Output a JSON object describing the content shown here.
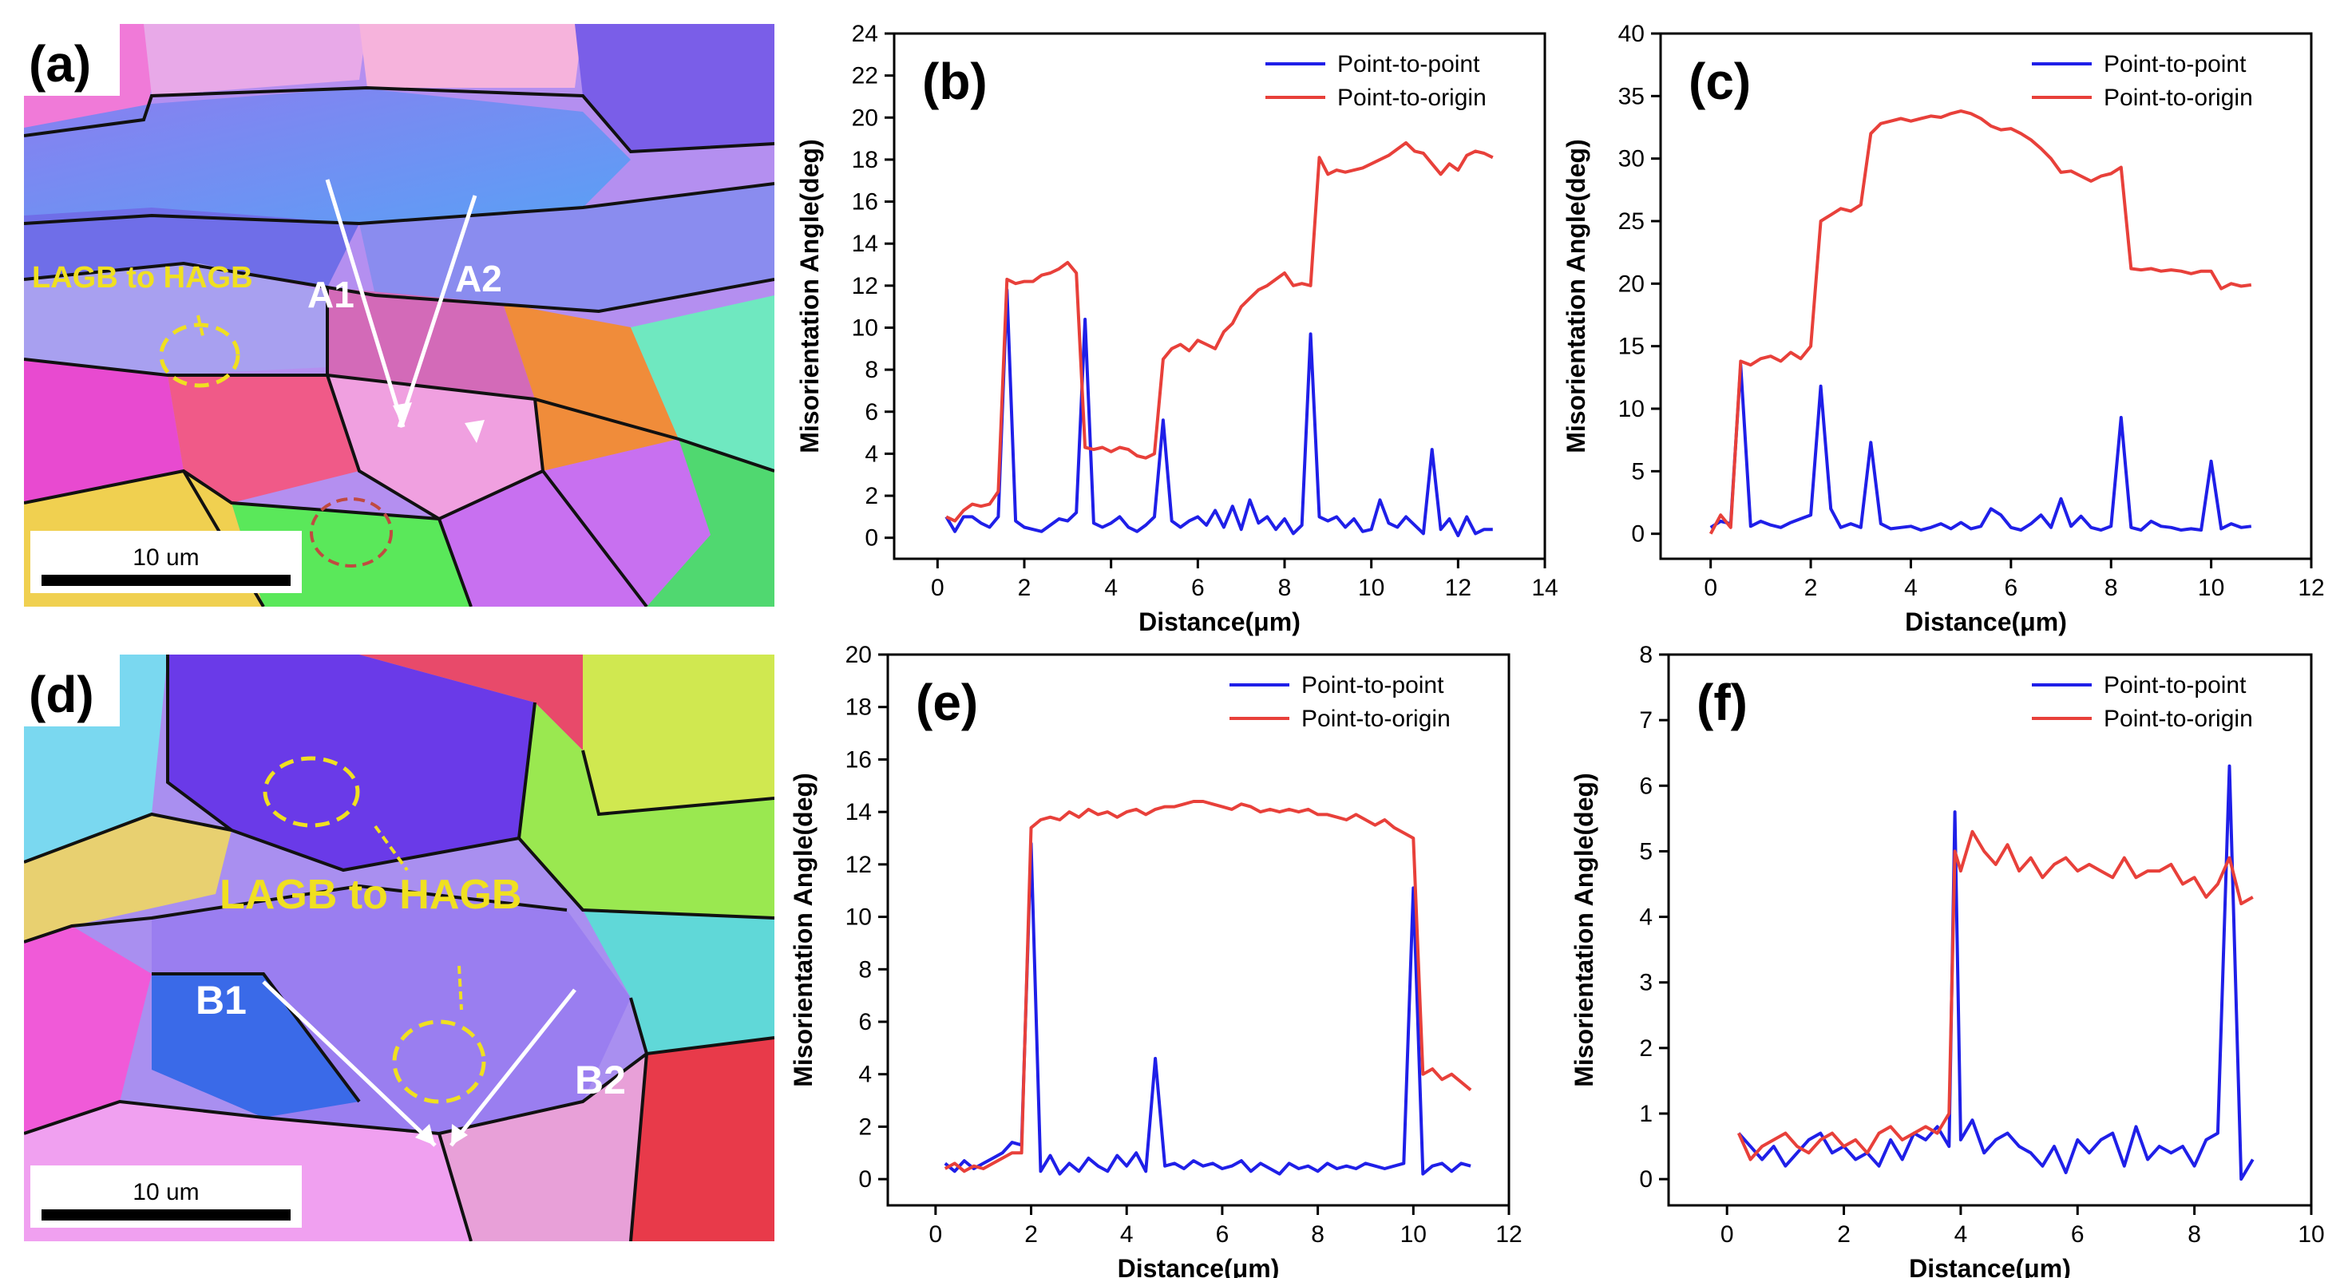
{
  "ebsd_maps": [
    {
      "panel_label": "(a)",
      "scale_bar": "10 um",
      "annotation": "LAGB to HAGB",
      "line_labels": [
        "A1",
        "A2"
      ]
    },
    {
      "panel_label": "(d)",
      "scale_bar": "10 um",
      "annotation": "LAGB to HAGB",
      "line_labels": [
        "B1",
        "B2"
      ]
    }
  ],
  "colors": {
    "point_to_point": "#1f1fe8",
    "point_to_origin": "#e8403a",
    "annotation": "#f0e020",
    "arrow": "#ffffff"
  },
  "chart_data": [
    {
      "type": "line",
      "panel_label": "(b)",
      "xlabel": "Distance(μm)",
      "ylabel": "Misorientation Angle(deg)",
      "xlim": [
        -1,
        14
      ],
      "ylim": [
        -1,
        24
      ],
      "xticks": [
        0,
        2,
        4,
        6,
        8,
        10,
        12,
        14
      ],
      "yticks": [
        0,
        2,
        4,
        6,
        8,
        10,
        12,
        14,
        16,
        18,
        20,
        22,
        24
      ],
      "legend": [
        "Point-to-point",
        "Point-to-origin"
      ],
      "legend_position": "top-right",
      "series": [
        {
          "name": "Point-to-point",
          "color": "#1f1fe8",
          "x": [
            0.2,
            0.4,
            0.6,
            0.8,
            1.0,
            1.2,
            1.4,
            1.6,
            1.8,
            2.0,
            2.2,
            2.4,
            2.6,
            2.8,
            3.0,
            3.2,
            3.4,
            3.6,
            3.8,
            4.0,
            4.2,
            4.4,
            4.6,
            4.8,
            5.0,
            5.2,
            5.4,
            5.6,
            5.8,
            6.0,
            6.2,
            6.4,
            6.6,
            6.8,
            7.0,
            7.2,
            7.4,
            7.6,
            7.8,
            8.0,
            8.2,
            8.4,
            8.6,
            8.8,
            9.0,
            9.2,
            9.4,
            9.6,
            9.8,
            10.0,
            10.2,
            10.4,
            10.6,
            10.8,
            11.0,
            11.2,
            11.4,
            11.6,
            11.8,
            12.0,
            12.2,
            12.4,
            12.6,
            12.8
          ],
          "y": [
            1.0,
            0.3,
            1.0,
            1.0,
            0.7,
            0.5,
            1.0,
            11.8,
            0.8,
            0.5,
            0.4,
            0.3,
            0.6,
            0.9,
            0.8,
            1.2,
            10.4,
            0.7,
            0.5,
            0.7,
            1.0,
            0.5,
            0.3,
            0.6,
            1.0,
            5.6,
            0.8,
            0.5,
            0.8,
            1.0,
            0.6,
            1.3,
            0.5,
            1.5,
            0.4,
            1.8,
            0.7,
            1.0,
            0.4,
            0.9,
            0.2,
            0.6,
            9.7,
            1.0,
            0.8,
            1.0,
            0.5,
            0.9,
            0.3,
            0.4,
            1.8,
            0.7,
            0.5,
            1.0,
            0.6,
            0.2,
            4.2,
            0.4,
            0.9,
            0.1,
            1.0,
            0.2,
            0.4,
            0.4
          ]
        },
        {
          "name": "Point-to-origin",
          "color": "#e8403a",
          "x": [
            0.2,
            0.4,
            0.6,
            0.8,
            1.0,
            1.2,
            1.4,
            1.6,
            1.8,
            2.0,
            2.2,
            2.4,
            2.6,
            2.8,
            3.0,
            3.2,
            3.4,
            3.6,
            3.8,
            4.0,
            4.2,
            4.4,
            4.6,
            4.8,
            5.0,
            5.2,
            5.4,
            5.6,
            5.8,
            6.0,
            6.2,
            6.4,
            6.6,
            6.8,
            7.0,
            7.2,
            7.4,
            7.6,
            7.8,
            8.0,
            8.2,
            8.4,
            8.6,
            8.8,
            9.0,
            9.2,
            9.4,
            9.6,
            9.8,
            10.0,
            10.2,
            10.4,
            10.6,
            10.8,
            11.0,
            11.2,
            11.4,
            11.6,
            11.8,
            12.0,
            12.2,
            12.4,
            12.6,
            12.8
          ],
          "y": [
            1.0,
            0.8,
            1.3,
            1.6,
            1.5,
            1.6,
            2.2,
            12.3,
            12.1,
            12.2,
            12.2,
            12.5,
            12.6,
            12.8,
            13.1,
            12.6,
            4.3,
            4.2,
            4.3,
            4.1,
            4.3,
            4.2,
            3.9,
            3.8,
            4.0,
            8.5,
            9.0,
            9.2,
            8.9,
            9.4,
            9.2,
            9.0,
            9.8,
            10.2,
            11.0,
            11.4,
            11.8,
            12.0,
            12.3,
            12.6,
            12.0,
            12.1,
            12.0,
            18.1,
            17.3,
            17.5,
            17.4,
            17.5,
            17.6,
            17.8,
            18.0,
            18.2,
            18.5,
            18.8,
            18.4,
            18.3,
            17.8,
            17.3,
            17.8,
            17.5,
            18.2,
            18.4,
            18.3,
            18.1
          ]
        }
      ]
    },
    {
      "type": "line",
      "panel_label": "(c)",
      "xlabel": "Distance(μm)",
      "ylabel": "Misorientation Angle(deg)",
      "xlim": [
        -1,
        12
      ],
      "ylim": [
        -2,
        40
      ],
      "xticks": [
        0,
        2,
        4,
        6,
        8,
        10,
        12
      ],
      "yticks": [
        0,
        5,
        10,
        15,
        20,
        25,
        30,
        35,
        40
      ],
      "legend": [
        "Point-to-point",
        "Point-to-origin"
      ],
      "legend_position": "top-right",
      "series": [
        {
          "name": "Point-to-point",
          "color": "#1f1fe8",
          "x": [
            0.0,
            0.2,
            0.4,
            0.6,
            0.8,
            1.0,
            1.2,
            1.4,
            1.6,
            1.8,
            2.0,
            2.2,
            2.4,
            2.6,
            2.8,
            3.0,
            3.2,
            3.4,
            3.6,
            3.8,
            4.0,
            4.2,
            4.4,
            4.6,
            4.8,
            5.0,
            5.2,
            5.4,
            5.6,
            5.8,
            6.0,
            6.2,
            6.4,
            6.6,
            6.8,
            7.0,
            7.2,
            7.4,
            7.6,
            7.8,
            8.0,
            8.2,
            8.4,
            8.6,
            8.8,
            9.0,
            9.2,
            9.4,
            9.6,
            9.8,
            10.0,
            10.2,
            10.4,
            10.6,
            10.8
          ],
          "y": [
            0.5,
            1.0,
            0.8,
            13.5,
            0.6,
            1.0,
            0.7,
            0.5,
            0.9,
            1.2,
            1.5,
            11.8,
            2.0,
            0.5,
            0.8,
            0.5,
            7.3,
            0.8,
            0.4,
            0.5,
            0.6,
            0.3,
            0.5,
            0.8,
            0.4,
            0.9,
            0.4,
            0.6,
            2.0,
            1.5,
            0.5,
            0.3,
            0.8,
            1.5,
            0.5,
            2.8,
            0.6,
            1.4,
            0.5,
            0.3,
            0.6,
            9.3,
            0.5,
            0.3,
            1.0,
            0.6,
            0.5,
            0.3,
            0.4,
            0.3,
            5.8,
            0.4,
            0.8,
            0.5,
            0.6
          ]
        },
        {
          "name": "Point-to-origin",
          "color": "#e8403a",
          "x": [
            0.0,
            0.2,
            0.4,
            0.6,
            0.8,
            1.0,
            1.2,
            1.4,
            1.6,
            1.8,
            2.0,
            2.2,
            2.4,
            2.6,
            2.8,
            3.0,
            3.2,
            3.4,
            3.6,
            3.8,
            4.0,
            4.2,
            4.4,
            4.6,
            4.8,
            5.0,
            5.2,
            5.4,
            5.6,
            5.8,
            6.0,
            6.2,
            6.4,
            6.6,
            6.8,
            7.0,
            7.2,
            7.4,
            7.6,
            7.8,
            8.0,
            8.2,
            8.4,
            8.6,
            8.8,
            9.0,
            9.2,
            9.4,
            9.6,
            9.8,
            10.0,
            10.2,
            10.4,
            10.6,
            10.8
          ],
          "y": [
            0.0,
            1.5,
            0.5,
            13.8,
            13.5,
            14.0,
            14.2,
            13.8,
            14.5,
            14.0,
            15.0,
            25.0,
            25.5,
            26.0,
            25.8,
            26.3,
            32.0,
            32.8,
            33.0,
            33.2,
            33.0,
            33.2,
            33.4,
            33.3,
            33.6,
            33.8,
            33.6,
            33.2,
            32.6,
            32.3,
            32.4,
            32.0,
            31.5,
            30.8,
            30.0,
            28.9,
            29.0,
            28.6,
            28.2,
            28.6,
            28.8,
            29.3,
            21.2,
            21.1,
            21.2,
            21.0,
            21.1,
            21.0,
            20.8,
            21.0,
            21.0,
            19.6,
            20.0,
            19.8,
            19.9
          ]
        }
      ]
    },
    {
      "type": "line",
      "panel_label": "(e)",
      "xlabel": "Distance(μm)",
      "ylabel": "Misorientation Angle(deg)",
      "xlim": [
        -1,
        12
      ],
      "ylim": [
        -1,
        20
      ],
      "xticks": [
        0,
        2,
        4,
        6,
        8,
        10,
        12
      ],
      "yticks": [
        0,
        2,
        4,
        6,
        8,
        10,
        12,
        14,
        16,
        18,
        20
      ],
      "legend": [
        "Point-to-point",
        "Point-to-origin"
      ],
      "legend_position": "top-right",
      "series": [
        {
          "name": "Point-to-point",
          "color": "#1f1fe8",
          "x": [
            0.2,
            0.4,
            0.6,
            0.8,
            1.0,
            1.2,
            1.4,
            1.6,
            1.8,
            2.0,
            2.2,
            2.4,
            2.6,
            2.8,
            3.0,
            3.2,
            3.4,
            3.6,
            3.8,
            4.0,
            4.2,
            4.4,
            4.6,
            4.8,
            5.0,
            5.2,
            5.4,
            5.6,
            5.8,
            6.0,
            6.2,
            6.4,
            6.6,
            6.8,
            7.0,
            7.2,
            7.4,
            7.6,
            7.8,
            8.0,
            8.2,
            8.4,
            8.6,
            8.8,
            9.0,
            9.2,
            9.4,
            9.6,
            9.8,
            10.0,
            10.2,
            10.4,
            10.6,
            10.8,
            11.0,
            11.2
          ],
          "y": [
            0.6,
            0.3,
            0.7,
            0.4,
            0.6,
            0.8,
            1.0,
            1.4,
            1.3,
            12.8,
            0.3,
            0.9,
            0.2,
            0.6,
            0.3,
            0.8,
            0.5,
            0.3,
            0.9,
            0.5,
            1.0,
            0.3,
            4.6,
            0.5,
            0.6,
            0.4,
            0.7,
            0.5,
            0.6,
            0.4,
            0.5,
            0.7,
            0.3,
            0.6,
            0.4,
            0.2,
            0.6,
            0.4,
            0.5,
            0.3,
            0.6,
            0.4,
            0.5,
            0.4,
            0.6,
            0.5,
            0.4,
            0.5,
            0.6,
            11.1,
            0.2,
            0.5,
            0.6,
            0.3,
            0.6,
            0.5
          ]
        },
        {
          "name": "Point-to-origin",
          "color": "#e8403a",
          "x": [
            0.2,
            0.4,
            0.6,
            0.8,
            1.0,
            1.2,
            1.4,
            1.6,
            1.8,
            2.0,
            2.2,
            2.4,
            2.6,
            2.8,
            3.0,
            3.2,
            3.4,
            3.6,
            3.8,
            4.0,
            4.2,
            4.4,
            4.6,
            4.8,
            5.0,
            5.2,
            5.4,
            5.6,
            5.8,
            6.0,
            6.2,
            6.4,
            6.6,
            6.8,
            7.0,
            7.2,
            7.4,
            7.6,
            7.8,
            8.0,
            8.2,
            8.4,
            8.6,
            8.8,
            9.0,
            9.2,
            9.4,
            9.6,
            9.8,
            10.0,
            10.2,
            10.4,
            10.6,
            10.8,
            11.0,
            11.2
          ],
          "y": [
            0.4,
            0.6,
            0.3,
            0.5,
            0.4,
            0.6,
            0.8,
            1.0,
            1.0,
            13.4,
            13.7,
            13.8,
            13.7,
            14.0,
            13.8,
            14.1,
            13.9,
            14.0,
            13.8,
            14.0,
            14.1,
            13.9,
            14.1,
            14.2,
            14.2,
            14.3,
            14.4,
            14.4,
            14.3,
            14.2,
            14.1,
            14.3,
            14.2,
            14.0,
            14.1,
            14.0,
            14.1,
            14.0,
            14.1,
            13.9,
            13.9,
            13.8,
            13.7,
            13.9,
            13.7,
            13.5,
            13.7,
            13.4,
            13.2,
            13.0,
            4.0,
            4.2,
            3.8,
            4.0,
            3.7,
            3.4
          ]
        }
      ]
    },
    {
      "type": "line",
      "panel_label": "(f)",
      "xlabel": "Distance(μm)",
      "ylabel": "Misorientation Angle(deg)",
      "xlim": [
        -1,
        10
      ],
      "ylim": [
        -0.4,
        8
      ],
      "xticks": [
        0,
        2,
        4,
        6,
        8,
        10
      ],
      "yticks": [
        0,
        1,
        2,
        3,
        4,
        5,
        6,
        7,
        8
      ],
      "legend": [
        "Point-to-point",
        "Point-to-origin"
      ],
      "legend_position": "top-right",
      "series": [
        {
          "name": "Point-to-point",
          "color": "#1f1fe8",
          "x": [
            0.2,
            0.4,
            0.6,
            0.8,
            1.0,
            1.2,
            1.4,
            1.6,
            1.8,
            2.0,
            2.2,
            2.4,
            2.6,
            2.8,
            3.0,
            3.2,
            3.4,
            3.6,
            3.8,
            3.9,
            4.0,
            4.2,
            4.4,
            4.6,
            4.8,
            5.0,
            5.2,
            5.4,
            5.6,
            5.8,
            6.0,
            6.2,
            6.4,
            6.6,
            6.8,
            7.0,
            7.2,
            7.4,
            7.6,
            7.8,
            8.0,
            8.2,
            8.4,
            8.6,
            8.8,
            9.0
          ],
          "y": [
            0.7,
            0.5,
            0.3,
            0.5,
            0.2,
            0.4,
            0.6,
            0.7,
            0.4,
            0.5,
            0.3,
            0.4,
            0.2,
            0.6,
            0.3,
            0.7,
            0.6,
            0.8,
            0.5,
            5.6,
            0.6,
            0.9,
            0.4,
            0.6,
            0.7,
            0.5,
            0.4,
            0.2,
            0.5,
            0.1,
            0.6,
            0.4,
            0.6,
            0.7,
            0.2,
            0.8,
            0.3,
            0.5,
            0.4,
            0.5,
            0.2,
            0.6,
            0.7,
            6.3,
            0.0,
            0.3
          ]
        },
        {
          "name": "Point-to-origin",
          "color": "#e8403a",
          "x": [
            0.2,
            0.4,
            0.6,
            0.8,
            1.0,
            1.2,
            1.4,
            1.6,
            1.8,
            2.0,
            2.2,
            2.4,
            2.6,
            2.8,
            3.0,
            3.2,
            3.4,
            3.6,
            3.8,
            3.9,
            4.0,
            4.2,
            4.4,
            4.6,
            4.8,
            5.0,
            5.2,
            5.4,
            5.6,
            5.8,
            6.0,
            6.2,
            6.4,
            6.6,
            6.8,
            7.0,
            7.2,
            7.4,
            7.6,
            7.8,
            8.0,
            8.2,
            8.4,
            8.6,
            8.8,
            9.0
          ],
          "y": [
            0.7,
            0.3,
            0.5,
            0.6,
            0.7,
            0.5,
            0.4,
            0.6,
            0.7,
            0.5,
            0.6,
            0.4,
            0.7,
            0.8,
            0.6,
            0.7,
            0.8,
            0.7,
            1.0,
            5.0,
            4.7,
            5.3,
            5.0,
            4.8,
            5.1,
            4.7,
            4.9,
            4.6,
            4.8,
            4.9,
            4.7,
            4.8,
            4.7,
            4.6,
            4.9,
            4.6,
            4.7,
            4.7,
            4.8,
            4.5,
            4.6,
            4.3,
            4.5,
            4.9,
            4.2,
            4.3
          ]
        }
      ]
    }
  ]
}
